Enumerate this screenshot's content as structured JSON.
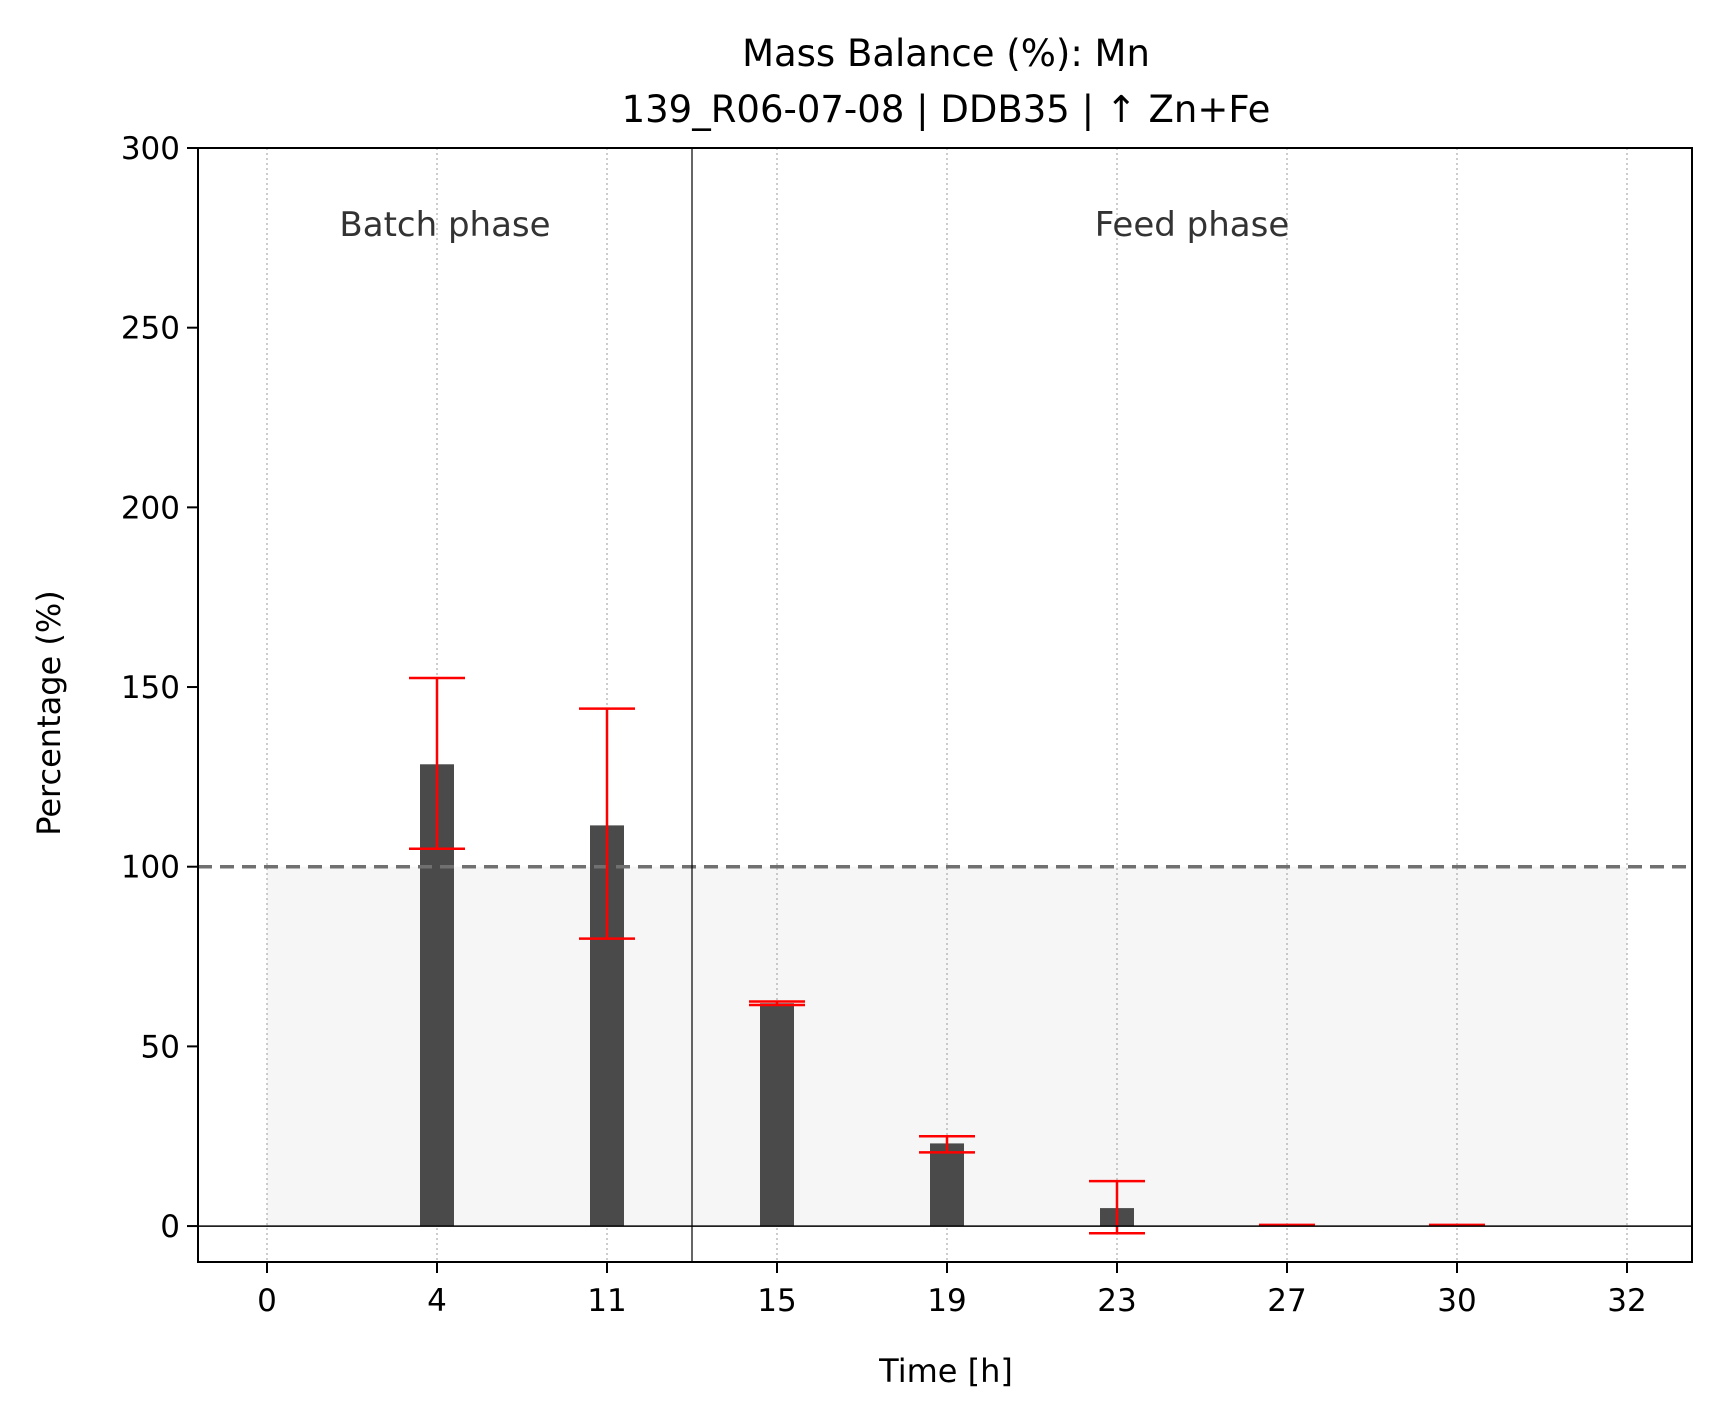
{
  "chart_data": {
    "type": "bar",
    "title_lines": [
      "Mass Balance (%): Mn",
      "139_R06-07-08 | DDB35 | ↑ Zn+Fe"
    ],
    "xlabel": "Time [h]",
    "ylabel": "Percentage (%)",
    "categories": [
      "0",
      "4",
      "11",
      "15",
      "19",
      "23",
      "27",
      "30",
      "32"
    ],
    "values": [
      null,
      128.5,
      111.5,
      62.0,
      23.0,
      5.0,
      0.3,
      0.3,
      null
    ],
    "error_low": [
      null,
      105.0,
      80.0,
      61.5,
      20.5,
      -2.0,
      0.3,
      0.3,
      null
    ],
    "error_high": [
      null,
      152.5,
      144.0,
      62.5,
      25.0,
      12.5,
      0.3,
      0.3,
      null
    ],
    "yticks": [
      0,
      50,
      100,
      150,
      200,
      250,
      300
    ],
    "ylim": [
      -10,
      300
    ],
    "reference_line": 100,
    "shaded_band": [
      0,
      100
    ],
    "phases": [
      {
        "label": "Batch phase",
        "from_index": 0,
        "to_index": 2
      },
      {
        "label": "Feed phase",
        "from_index": 3,
        "to_index": 8
      }
    ],
    "phase_split_after_index": 2,
    "grid": "vertical dotted",
    "colors": {
      "bar": "#4a4a4a",
      "error_bar": "#ff0000",
      "reference_line": "#707070",
      "band": "#f2f2f2",
      "grid": "#9a9a9a"
    }
  }
}
